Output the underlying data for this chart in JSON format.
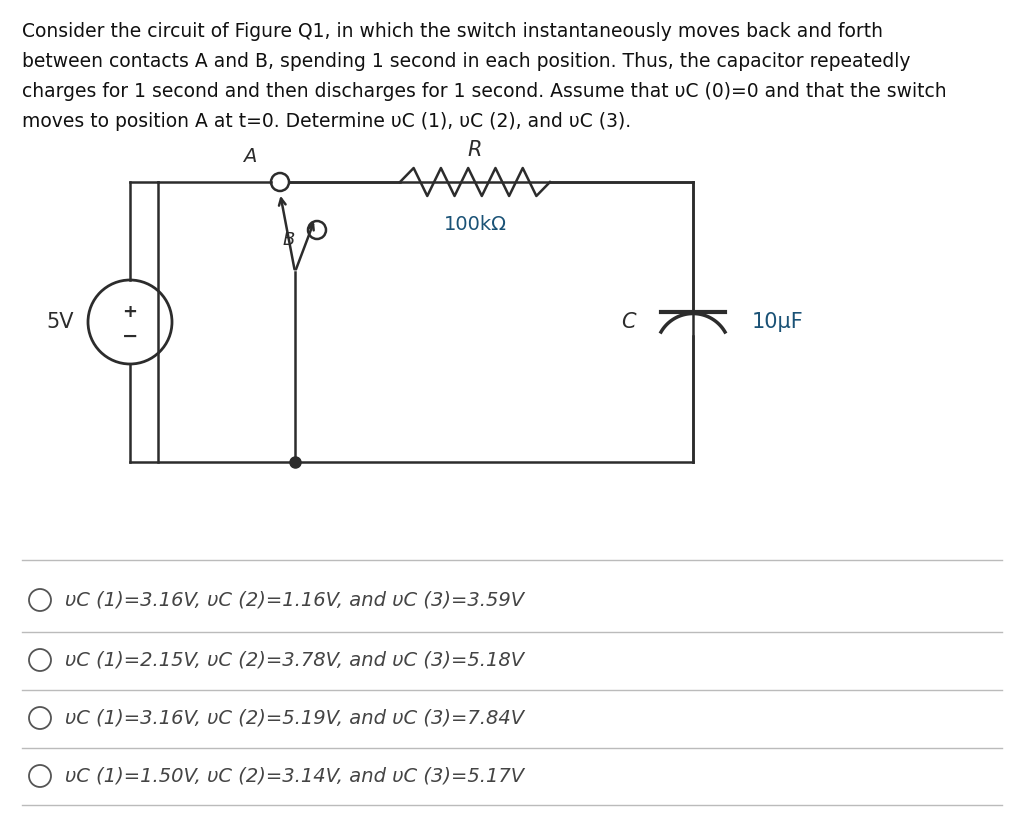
{
  "background_color": "#ffffff",
  "title_lines": [
    "Consider the circuit of Figure Q1, in which the switch instantaneously moves back and forth",
    "between contacts A and B, spending 1 second in each position. Thus, the capacitor repeatedly",
    "charges for 1 second and then discharges for 1 second. Assume that υC (0)=0 and that the switch",
    "moves to position A at t=0. Determine υC (1), υC (2), and υC (3)."
  ],
  "options": [
    "υC (1)=3.16V, υC (2)=1.16V, and υC (3)=3.59V",
    "υC (1)=2.15V, υC (2)=3.78V, and υC (3)=5.18V",
    "υC (1)=3.16V, υC (2)=5.19V, and υC (3)=7.84V",
    "υC (1)=1.50V, υC (2)=3.14V, and υC (3)=5.17V"
  ],
  "font_size_title": 13.5,
  "font_size_options": 14,
  "circuit_color": "#2c2c2c",
  "voltage_label": "5V",
  "resistor_label": "R",
  "resistor_value": "100kΩ",
  "capacitor_label": "C",
  "capacitor_value": "10μF",
  "option_text_color": "#444444",
  "separator_color": "#bbbbbb",
  "radio_color": "#555555"
}
